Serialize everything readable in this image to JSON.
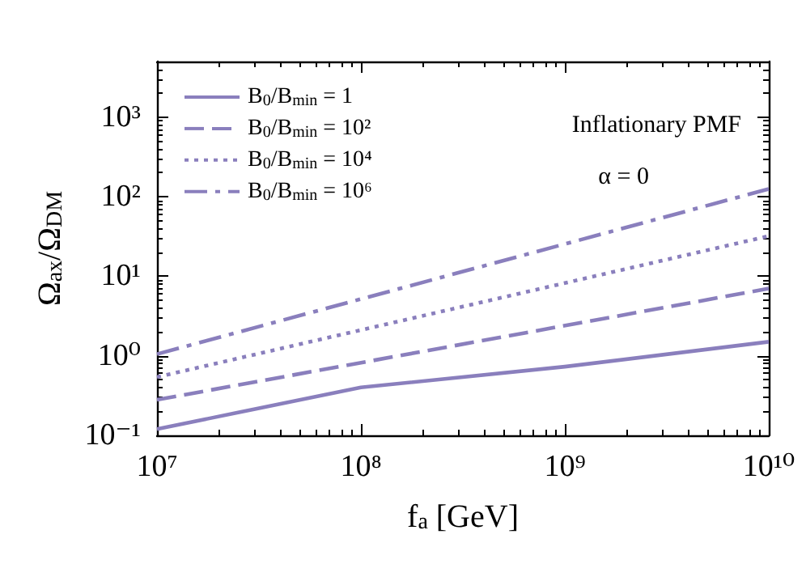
{
  "chart_data": {
    "type": "line",
    "xlabel": "f$_{a}$ [GeV]",
    "ylabel": "Ω$_{ax}$/Ω$_{DM}$",
    "annotations": [
      "Inflationary PMF",
      "α = 0"
    ],
    "log": "xy",
    "grid": false,
    "legend": "top left",
    "marker": "none",
    "xlim": [
      10000000,
      10000000000
    ],
    "xticks": [
      {
        "value": 10000000,
        "label": "10⁷"
      },
      {
        "value": 100000000,
        "label": "10⁸"
      },
      {
        "value": 1000000000,
        "label": "10⁹"
      },
      {
        "value": 10000000000,
        "label": "10¹⁰"
      }
    ],
    "ylim": [
      0.1,
      5000
    ],
    "yticks": [
      {
        "value": 0.1,
        "label": "10⁻¹"
      },
      {
        "value": 1,
        "label": "10⁰"
      },
      {
        "value": 10,
        "label": "10¹"
      },
      {
        "value": 100,
        "label": "10²"
      },
      {
        "value": 1000,
        "label": "10³"
      }
    ],
    "series": [
      {
        "name": "B$_{0}$/B$_{min}$ = 1",
        "color": "#8a7fbd",
        "line_style": "solid",
        "x": [
          10000000,
          100000000,
          1000000000,
          10000000000
        ],
        "values": [
          0.12,
          0.4,
          0.73,
          1.5
        ]
      },
      {
        "name": "B$_{0}$/B$_{min}$ = 10²",
        "color": "#8a7fbd",
        "line_style": "dashed",
        "x": [
          10000000,
          10000000000
        ],
        "values": [
          0.28,
          7
        ]
      },
      {
        "name": "B$_{0}$/B$_{min}$ = 10⁴",
        "color": "#8a7fbd",
        "line_style": "dotted",
        "x": [
          10000000,
          10000000000
        ],
        "values": [
          0.54,
          32
        ]
      },
      {
        "name": "B$_{0}$/B$_{min}$ = 10⁶",
        "color": "#8a7fbd",
        "line_style": "dashdot",
        "x": [
          10000000,
          10000000000
        ],
        "values": [
          1.05,
          125
        ]
      }
    ]
  }
}
